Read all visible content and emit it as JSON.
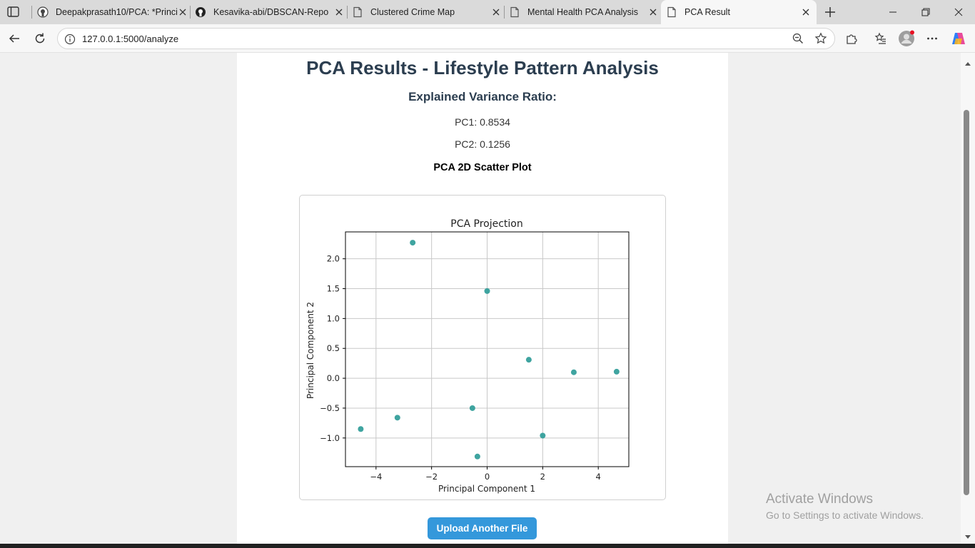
{
  "browser": {
    "tabs": [
      {
        "title": "Deepakprasath10/PCA: *Princi",
        "icon": "github-icon"
      },
      {
        "title": "Kesavika-abi/DBSCAN-Repo",
        "icon": "github-icon"
      },
      {
        "title": "Clustered Crime Map",
        "icon": "page-icon"
      },
      {
        "title": "Mental Health PCA Analysis",
        "icon": "page-icon"
      },
      {
        "title": "PCA Result",
        "icon": "page-icon",
        "active": true
      }
    ],
    "url": "127.0.0.1:5000/analyze"
  },
  "page": {
    "title": "PCA Results - Lifestyle Pattern Analysis",
    "variance_heading": "Explained Variance Ratio:",
    "pc1_text": "PC1: 0.8534",
    "pc2_text": "PC2: 0.1256",
    "plot_heading": "PCA 2D Scatter Plot",
    "upload_button": "Upload Another File"
  },
  "chart_data": {
    "type": "scatter",
    "title": "PCA Projection",
    "xlabel": "Principal Component 1",
    "ylabel": "Principal Component 2",
    "xlim": [
      -5.1,
      5.1
    ],
    "ylim": [
      -1.48,
      2.45
    ],
    "xticks": [
      -4,
      -2,
      0,
      2,
      4
    ],
    "yticks": [
      -1.0,
      -0.5,
      0.0,
      0.5,
      1.0,
      1.5,
      2.0
    ],
    "xtick_labels": [
      "−4",
      "−2",
      "0",
      "2",
      "4"
    ],
    "ytick_labels": [
      "−1.0",
      "−0.5",
      "0.0",
      "0.5",
      "1.0",
      "1.5",
      "2.0"
    ],
    "grid": true,
    "color": "#2a9a96",
    "points": [
      {
        "x": -2.68,
        "y": 2.27
      },
      {
        "x": 0.0,
        "y": 1.46
      },
      {
        "x": 1.5,
        "y": 0.31
      },
      {
        "x": 3.12,
        "y": 0.1
      },
      {
        "x": 4.66,
        "y": 0.11
      },
      {
        "x": -0.53,
        "y": -0.5
      },
      {
        "x": -3.23,
        "y": -0.66
      },
      {
        "x": -4.55,
        "y": -0.85
      },
      {
        "x": 2.0,
        "y": -0.96
      },
      {
        "x": -0.35,
        "y": -1.31
      }
    ]
  },
  "watermark": {
    "line1": "Activate Windows",
    "line2": "Go to Settings to activate Windows."
  }
}
